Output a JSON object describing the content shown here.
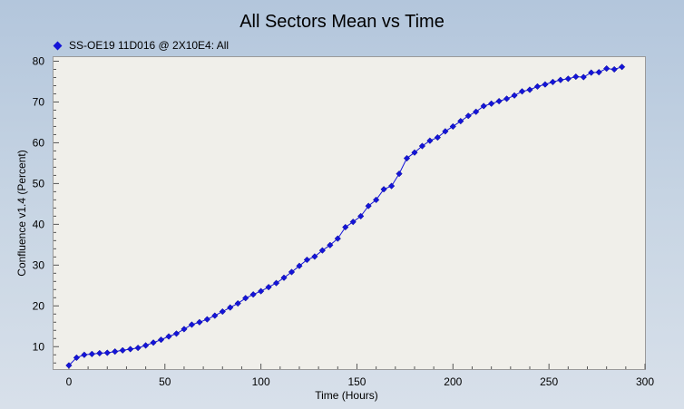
{
  "chart_data": {
    "type": "line",
    "title": "All Sectors Mean vs Time",
    "xlabel": "Time (Hours)",
    "ylabel": "Confluence v1.4 (Percent)",
    "xlim": [
      -8,
      300
    ],
    "ylim": [
      4.5,
      81
    ],
    "x_ticks": [
      0,
      50,
      100,
      150,
      200,
      250,
      300
    ],
    "y_ticks": [
      10,
      20,
      30,
      40,
      50,
      60,
      70,
      80
    ],
    "grid": false,
    "legend": "top-left",
    "series": [
      {
        "name": "SS-OE19 11D016 @ 2X10E4: All",
        "color": "#1414d8",
        "x": [
          0,
          4,
          8,
          12,
          16,
          20,
          24,
          28,
          32,
          36,
          40,
          44,
          48,
          52,
          56,
          60,
          64,
          68,
          72,
          76,
          80,
          84,
          88,
          92,
          96,
          100,
          104,
          108,
          112,
          116,
          120,
          124,
          128,
          132,
          136,
          140,
          144,
          148,
          152,
          156,
          160,
          164,
          168,
          172,
          176,
          180,
          184,
          188,
          192,
          196,
          200,
          204,
          208,
          212,
          216,
          220,
          224,
          228,
          232,
          236,
          240,
          244,
          248,
          252,
          256,
          260,
          264,
          268,
          272,
          276,
          280,
          284,
          288
        ],
        "y": [
          5.4,
          7.3,
          8.0,
          8.2,
          8.4,
          8.5,
          8.8,
          9.1,
          9.4,
          9.7,
          10.3,
          11.0,
          11.7,
          12.5,
          13.2,
          14.3,
          15.4,
          16.0,
          16.7,
          17.6,
          18.6,
          19.6,
          20.6,
          21.9,
          22.8,
          23.6,
          24.6,
          25.6,
          26.9,
          28.3,
          29.8,
          31.3,
          32.1,
          33.6,
          34.9,
          36.5,
          39.3,
          40.6,
          42.0,
          44.5,
          46.0,
          48.6,
          49.4,
          52.4,
          56.2,
          57.6,
          59.2,
          60.5,
          61.3,
          62.8,
          64.0,
          65.3,
          66.6,
          67.6,
          69.0,
          69.6,
          70.2,
          70.8,
          71.6,
          72.6,
          73.0,
          73.8,
          74.3,
          74.9,
          75.4,
          75.7,
          76.2,
          76.1,
          77.2,
          77.3,
          78.2,
          78.0,
          78.6
        ]
      }
    ]
  }
}
